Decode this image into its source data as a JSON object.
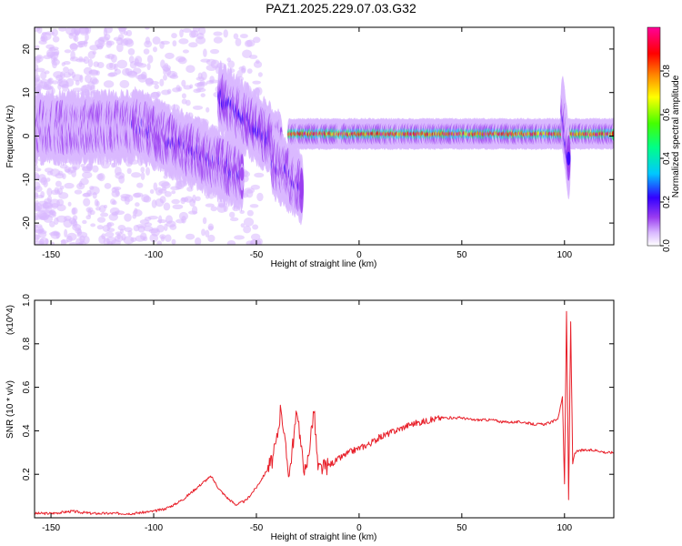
{
  "figure": {
    "title": "PAZ1.2025.229.07.03.G32"
  },
  "chart_data": [
    {
      "id": "spectrogram",
      "type": "heatmap",
      "title": "",
      "xlabel": "Height of straight line (km)",
      "ylabel": "Frequency (Hz)",
      "xlim": [
        -158,
        124
      ],
      "ylim": [
        -25,
        25
      ],
      "xticks": [
        -150,
        -100,
        -50,
        0,
        50,
        100
      ],
      "yticks": [
        -20,
        -10,
        0,
        10,
        20
      ],
      "colorbar": {
        "label": "Normalized spectral amplitude",
        "range": [
          0,
          1
        ],
        "ticks": [
          "0.0",
          "0.2",
          "0.4",
          "0.6",
          "0.8"
        ],
        "colormap": [
          "#ffffff",
          "#d9b8ff",
          "#9a3cf0",
          "#3300ff",
          "#00e0ff",
          "#00ff66",
          "#ffff00",
          "#ff8800",
          "#ff0000",
          "#ff0099"
        ]
      },
      "ridges": [
        {
          "x_range": [
            -158,
            -110
          ],
          "freq_hz": 2.0,
          "amplitude": 0.15
        },
        {
          "x_range": [
            -110,
            -57
          ],
          "freq_start_hz": 3.0,
          "freq_end_hz": -9.0,
          "amplitude": 0.25
        },
        {
          "x_range": [
            -68,
            -38
          ],
          "freq_start_hz": 9.0,
          "freq_end_hz": -3.0,
          "amplitude": 0.3
        },
        {
          "x_range": [
            -42,
            -28
          ],
          "freq_start_hz": -6.0,
          "freq_end_hz": -12.0,
          "amplitude": 0.25
        },
        {
          "x_range": [
            -34,
            124
          ],
          "freq_hz": 0.5,
          "amplitude": 0.85
        },
        {
          "x_range": [
            99,
            102
          ],
          "freq_start_hz": 6.0,
          "freq_end_hz": -6.0,
          "amplitude": 0.3
        }
      ]
    },
    {
      "id": "snr",
      "type": "line",
      "title": "",
      "xlabel": "Height of straight line (km)",
      "ylabel": "SNR (10 * v/v)",
      "y_multiplier": "(x10^4)",
      "xlim": [
        -158,
        124
      ],
      "ylim": [
        0,
        1.0
      ],
      "xticks": [
        -150,
        -100,
        -50,
        0,
        50,
        100
      ],
      "yticks": [
        0.2,
        0.4,
        0.6,
        0.8,
        1.0
      ],
      "color": "#e8202a",
      "x": [
        -158,
        -150,
        -140,
        -130,
        -120,
        -110,
        -100,
        -95,
        -90,
        -85,
        -80,
        -75,
        -72,
        -68,
        -64,
        -60,
        -55,
        -50,
        -46,
        -42,
        -40,
        -38,
        -36,
        -34,
        -32,
        -30,
        -28,
        -26,
        -24,
        -22,
        -20,
        -15,
        -10,
        -5,
        0,
        5,
        10,
        15,
        20,
        25,
        30,
        35,
        40,
        45,
        50,
        55,
        60,
        65,
        70,
        75,
        80,
        85,
        90,
        94,
        97,
        99,
        100,
        101,
        102,
        103,
        104,
        105,
        108,
        112,
        116,
        120,
        124
      ],
      "y": [
        0.02,
        0.02,
        0.03,
        0.02,
        0.02,
        0.02,
        0.03,
        0.04,
        0.06,
        0.09,
        0.13,
        0.17,
        0.19,
        0.13,
        0.09,
        0.06,
        0.08,
        0.14,
        0.2,
        0.27,
        0.36,
        0.52,
        0.33,
        0.2,
        0.36,
        0.5,
        0.3,
        0.2,
        0.34,
        0.5,
        0.22,
        0.24,
        0.27,
        0.3,
        0.32,
        0.34,
        0.37,
        0.39,
        0.41,
        0.43,
        0.44,
        0.45,
        0.46,
        0.46,
        0.46,
        0.45,
        0.45,
        0.45,
        0.44,
        0.44,
        0.44,
        0.43,
        0.43,
        0.44,
        0.46,
        0.56,
        0.15,
        0.95,
        0.08,
        0.9,
        0.25,
        0.3,
        0.31,
        0.31,
        0.31,
        0.3,
        0.3
      ]
    }
  ]
}
